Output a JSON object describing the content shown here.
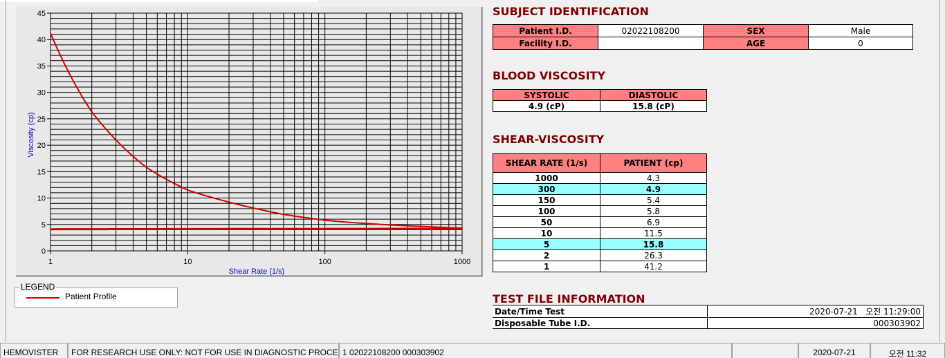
{
  "chart_data": {
    "type": "line",
    "xlabel": "Shear Rate (1/s)",
    "ylabel": "Viscosity (cp)",
    "xscale": "log",
    "xlim": [
      1,
      1000
    ],
    "ylim": [
      0,
      45
    ],
    "xticks": [
      "1",
      "10",
      "100",
      "1000"
    ],
    "yticks": [
      "0",
      "5",
      "10",
      "15",
      "20",
      "25",
      "30",
      "35",
      "40",
      "45"
    ],
    "grid": true,
    "series": [
      {
        "name": "Patient Profile",
        "color": "#d00000",
        "x": [
          1,
          2,
          5,
          10,
          50,
          100,
          150,
          300,
          1000
        ],
        "y": [
          41.2,
          26.3,
          15.8,
          11.5,
          6.9,
          5.8,
          5.4,
          4.9,
          4.3
        ]
      },
      {
        "color": "#d00000",
        "x": [
          1,
          1000
        ],
        "y": [
          4.1,
          4.2
        ]
      }
    ],
    "legend": {
      "title": "LEGEND",
      "entries": [
        "Patient Profile"
      ],
      "placement": "bottom-left"
    }
  },
  "subject": {
    "title": "SUBJECT IDENTIFICATION",
    "patient_id_label": "Patient I.D.",
    "patient_id": "02022108200",
    "sex_label": "SEX",
    "sex": "Male",
    "facility_label": "Facility I.D.",
    "facility": "",
    "age_label": "AGE",
    "age": "0"
  },
  "blood": {
    "title": "BLOOD VISCOSITY",
    "systolic_label": "SYSTOLIC",
    "diastolic_label": "DIASTOLIC",
    "systolic": "4.9 (cP)",
    "diastolic": "15.8 (cP)"
  },
  "shear": {
    "title": "SHEAR-VISCOSITY",
    "col1": "SHEAR RATE (1/s)",
    "col2": "PATIENT (cp)",
    "rows": [
      {
        "rate": "1000",
        "val": "4.3"
      },
      {
        "rate": "300",
        "val": "4.9",
        "hl": true
      },
      {
        "rate": "150",
        "val": "5.4"
      },
      {
        "rate": "100",
        "val": "5.8"
      },
      {
        "rate": "50",
        "val": "6.9"
      },
      {
        "rate": "10",
        "val": "11.5"
      },
      {
        "rate": "5",
        "val": "15.8",
        "hl": true
      },
      {
        "rate": "2",
        "val": "26.3"
      },
      {
        "rate": "1",
        "val": "41.2"
      }
    ],
    "highlight_color": "#99ffff"
  },
  "testfile": {
    "title": "TEST FILE INFORMATION",
    "date_label": "Date/Time Test",
    "date": "2020-07-21   오전 11:29:00",
    "tube_label": "Disposable Tube I.D.",
    "tube": "000303902"
  },
  "status": {
    "app": "HEMOVISTER",
    "notice": "FOR RESEARCH USE ONLY: NOT FOR USE IN DIAGNOSTIC PROCEDURES",
    "record": "1  02022108200  000303902",
    "blank": "",
    "date": "2020-07-21",
    "time": "오전 11:32"
  }
}
